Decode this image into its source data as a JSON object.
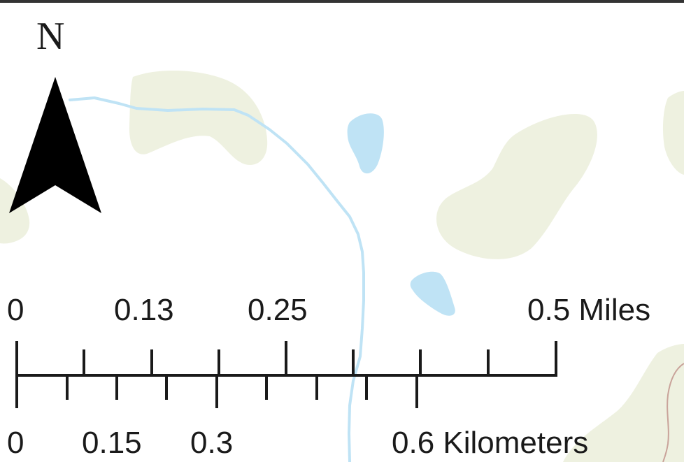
{
  "colors": {
    "water": "#bfe3f5",
    "vegetation": "#eef1e0",
    "ink": "#1a1a1a",
    "road": "#c9a39a"
  },
  "north_arrow": {
    "letter": "N",
    "icon": "north-arrow-icon"
  },
  "scale_bar": {
    "miles": {
      "ticks": [
        "0",
        "0.13",
        "0.25",
        "0.5 Miles"
      ]
    },
    "kilometers": {
      "ticks": [
        "0",
        "0.15",
        "0.3",
        "0.6 Kilometers"
      ]
    }
  }
}
